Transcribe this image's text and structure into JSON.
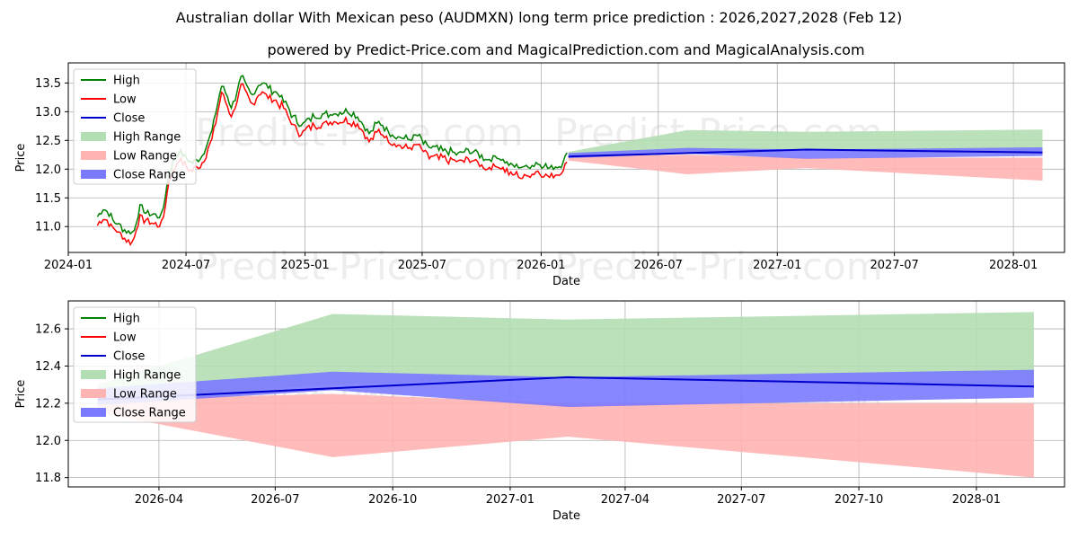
{
  "title": "Australian dollar With Mexican peso (AUDMXN) long term price prediction : 2026,2027,2028 (Feb 12)",
  "subtitle": "powered by Predict-Price.com and MagicalPrediction.com and MagicalAnalysis.com",
  "watermark": "Predict-Price.com",
  "colors": {
    "high": "#008000",
    "low": "#ff0000",
    "close": "#0000cd",
    "high_range": "#b3deb3",
    "low_range": "#ffb3b3",
    "close_range": "#7a7aff"
  },
  "chart_data": [
    {
      "type": "line",
      "name": "historical-and-forecast",
      "xlabel": "Date",
      "ylabel": "Price",
      "xlim": [
        "2024-01-01",
        "2028-03-20"
      ],
      "ylim": [
        10.55,
        13.85
      ],
      "x_ticks": [
        "2024-01",
        "2024-07",
        "2025-01",
        "2025-07",
        "2026-01",
        "2026-07",
        "2027-01",
        "2027-07",
        "2028-01"
      ],
      "y_ticks": [
        11.0,
        11.5,
        12.0,
        12.5,
        13.0,
        13.5
      ],
      "y_tick_labels": [
        "11.0",
        "11.5",
        "12.0",
        "12.5",
        "13.0",
        "13.5"
      ],
      "legend": [
        "High",
        "Low",
        "Close",
        "High Range",
        "Low Range",
        "Close Range"
      ],
      "legend_position": "top-left",
      "grid": true,
      "history_keypoints": [
        {
          "date": "2024-02-15",
          "value": 11.12
        },
        {
          "date": "2024-02-25",
          "value": 11.25
        },
        {
          "date": "2024-03-10",
          "value": 11.05
        },
        {
          "date": "2024-03-25",
          "value": 10.9
        },
        {
          "date": "2024-04-10",
          "value": 10.8
        },
        {
          "date": "2024-04-20",
          "value": 11.25
        },
        {
          "date": "2024-05-05",
          "value": 11.15
        },
        {
          "date": "2024-05-25",
          "value": 11.1
        },
        {
          "date": "2024-06-05",
          "value": 11.9
        },
        {
          "date": "2024-06-20",
          "value": 12.25
        },
        {
          "date": "2024-07-10",
          "value": 12.05
        },
        {
          "date": "2024-07-25",
          "value": 12.15
        },
        {
          "date": "2024-08-10",
          "value": 12.6
        },
        {
          "date": "2024-08-25",
          "value": 13.4
        },
        {
          "date": "2024-09-10",
          "value": 13.0
        },
        {
          "date": "2024-09-25",
          "value": 13.55
        },
        {
          "date": "2024-10-10",
          "value": 13.2
        },
        {
          "date": "2024-10-25",
          "value": 13.45
        },
        {
          "date": "2024-11-10",
          "value": 13.3
        },
        {
          "date": "2024-11-25",
          "value": 13.2
        },
        {
          "date": "2024-12-10",
          "value": 12.9
        },
        {
          "date": "2024-12-25",
          "value": 12.7
        },
        {
          "date": "2025-01-15",
          "value": 12.85
        },
        {
          "date": "2025-02-10",
          "value": 12.9
        },
        {
          "date": "2025-03-05",
          "value": 12.95
        },
        {
          "date": "2025-03-25",
          "value": 12.85
        },
        {
          "date": "2025-04-10",
          "value": 12.55
        },
        {
          "date": "2025-04-25",
          "value": 12.75
        },
        {
          "date": "2025-05-15",
          "value": 12.55
        },
        {
          "date": "2025-06-05",
          "value": 12.45
        },
        {
          "date": "2025-06-25",
          "value": 12.5
        },
        {
          "date": "2025-07-10",
          "value": 12.3
        },
        {
          "date": "2025-08-05",
          "value": 12.25
        },
        {
          "date": "2025-08-25",
          "value": 12.2
        },
        {
          "date": "2025-09-15",
          "value": 12.25
        },
        {
          "date": "2025-10-10",
          "value": 12.1
        },
        {
          "date": "2025-10-25",
          "value": 12.15
        },
        {
          "date": "2025-11-15",
          "value": 12.0
        },
        {
          "date": "2025-12-05",
          "value": 11.95
        },
        {
          "date": "2025-12-25",
          "value": 12.05
        },
        {
          "date": "2026-01-15",
          "value": 11.95
        },
        {
          "date": "2026-01-30",
          "value": 12.0
        },
        {
          "date": "2026-02-12",
          "value": 12.22
        }
      ],
      "history_high_offset": 0.07,
      "history_low_offset": -0.08,
      "forecast": {
        "dates": [
          "2026-02-12",
          "2026-08-15",
          "2027-02-15",
          "2028-02-15"
        ],
        "close": [
          12.22,
          12.28,
          12.34,
          12.29
        ],
        "close_range_high": [
          12.28,
          12.37,
          12.34,
          12.38
        ],
        "close_range_low": [
          12.19,
          12.27,
          12.18,
          12.23
        ],
        "high_range_high": [
          12.3,
          12.68,
          12.65,
          12.69
        ],
        "high_range_low": [
          12.22,
          12.3,
          12.34,
          12.3
        ],
        "low_range_high": [
          12.22,
          12.25,
          12.2,
          12.2
        ],
        "low_range_low": [
          12.15,
          11.91,
          12.02,
          11.8
        ]
      }
    },
    {
      "type": "line",
      "name": "forecast-zoom",
      "xlabel": "Date",
      "ylabel": "Price",
      "xlim": [
        "2026-01-20",
        "2028-03-10"
      ],
      "ylim": [
        11.75,
        12.75
      ],
      "x_ticks": [
        "2026-04",
        "2026-07",
        "2026-10",
        "2027-01",
        "2027-04",
        "2027-07",
        "2027-10",
        "2028-01"
      ],
      "y_ticks": [
        11.8,
        12.0,
        12.2,
        12.4,
        12.6
      ],
      "y_tick_labels": [
        "11.8",
        "12.0",
        "12.2",
        "12.4",
        "12.6"
      ],
      "legend": [
        "High",
        "Low",
        "Close",
        "High Range",
        "Low Range",
        "Close Range"
      ],
      "legend_position": "top-left",
      "grid": true,
      "forecast": {
        "dates": [
          "2026-02-12",
          "2026-08-15",
          "2027-02-15",
          "2028-02-15"
        ],
        "close": [
          12.22,
          12.28,
          12.34,
          12.29
        ],
        "close_range_high": [
          12.28,
          12.37,
          12.34,
          12.38
        ],
        "close_range_low": [
          12.19,
          12.27,
          12.18,
          12.23
        ],
        "high_range_high": [
          12.3,
          12.68,
          12.65,
          12.69
        ],
        "high_range_low": [
          12.22,
          12.3,
          12.34,
          12.3
        ],
        "low_range_high": [
          12.22,
          12.25,
          12.2,
          12.2
        ],
        "low_range_low": [
          12.15,
          11.91,
          12.02,
          11.8
        ]
      }
    }
  ]
}
